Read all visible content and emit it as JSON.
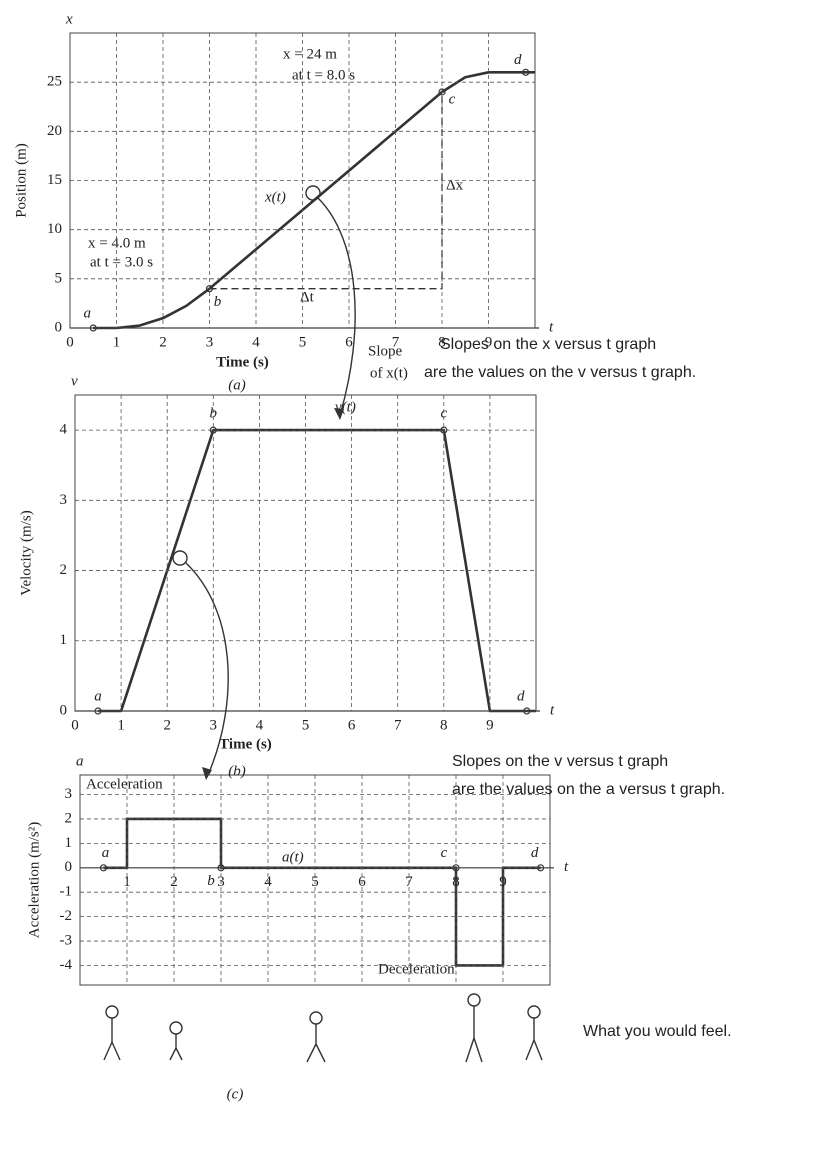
{
  "chart_data": [
    {
      "type": "line",
      "caption": "(a)",
      "x_label": "Time (s)",
      "y_label": "Position (m)",
      "x_symbol": "t",
      "y_symbol": "x",
      "xlim": [
        0,
        10
      ],
      "ylim": [
        0,
        30
      ],
      "xticks": [
        0,
        1,
        2,
        3,
        4,
        5,
        6,
        7,
        8,
        9
      ],
      "yticks": [
        0,
        5,
        10,
        15,
        20,
        25
      ],
      "grid": true,
      "x": [
        0.5,
        1,
        1.5,
        2,
        2.5,
        3,
        8,
        8.5,
        9,
        10
      ],
      "series": [
        {
          "name": "x(t)",
          "color": "#333333",
          "values": [
            0,
            0,
            0.25,
            1,
            2.25,
            4,
            24,
            25.5,
            26,
            26
          ]
        }
      ],
      "points": [
        {
          "label": "a",
          "x": 0.5,
          "y": 0
        },
        {
          "label": "b",
          "x": 3,
          "y": 4
        },
        {
          "label": "c",
          "x": 8,
          "y": 24
        },
        {
          "label": "d",
          "x": 9.8,
          "y": 26
        }
      ],
      "annotations": [
        "x = 24 m",
        "at t = 8.0 s",
        "x = 4.0 m",
        "at t = 3.0 s",
        "Δx",
        "Δt"
      ]
    },
    {
      "type": "line",
      "caption": "(b)",
      "x_label": "Time (s)",
      "y_label": "Velocity (m/s)",
      "x_symbol": "t",
      "y_symbol": "v",
      "xlim": [
        0,
        10
      ],
      "ylim": [
        0,
        4.5
      ],
      "xticks": [
        0,
        1,
        2,
        3,
        4,
        5,
        6,
        7,
        8,
        9
      ],
      "yticks": [
        0,
        1,
        2,
        3,
        4
      ],
      "grid": true,
      "x": [
        0.5,
        1,
        3,
        8,
        9,
        10
      ],
      "series": [
        {
          "name": "v(t)",
          "color": "#333333",
          "values": [
            0,
            0,
            4,
            4,
            0,
            0
          ]
        }
      ],
      "points": [
        {
          "label": "a",
          "x": 0.5,
          "y": 0
        },
        {
          "label": "b",
          "x": 3,
          "y": 4
        },
        {
          "label": "c",
          "x": 8,
          "y": 4
        },
        {
          "label": "d",
          "x": 9.8,
          "y": 0
        }
      ],
      "annotations": []
    },
    {
      "type": "line",
      "caption": "(c)",
      "y_label": "Acceleration (m/s²)",
      "x_symbol": "t",
      "y_symbol": "a",
      "xlim": [
        0,
        10
      ],
      "ylim": [
        -4.8,
        3.8
      ],
      "xticks": [
        1,
        2,
        3,
        4,
        5,
        6,
        7,
        8,
        9
      ],
      "yticks": [
        -4,
        -3,
        -2,
        -1,
        0,
        1,
        2,
        3
      ],
      "grid": true,
      "x": [
        0.5,
        1,
        1,
        3,
        3,
        8,
        8,
        9,
        9,
        9.8
      ],
      "series": [
        {
          "name": "a(t)",
          "color": "#333333",
          "values": [
            0,
            0,
            2,
            2,
            0,
            0,
            -4,
            -4,
            0,
            0
          ]
        }
      ],
      "points": [
        {
          "label": "a",
          "x": 0.5,
          "y": 0
        },
        {
          "label": "b",
          "x": 3,
          "y": 0
        },
        {
          "label": "c",
          "x": 8,
          "y": 0
        },
        {
          "label": "d",
          "x": 9.8,
          "y": 0
        }
      ],
      "annotations": [
        "Acceleration",
        "Deceleration"
      ]
    }
  ],
  "notes": [
    "Slopes on the x versus t graph",
    "are the values on the v versus t graph.",
    "Slope",
    "of x(t)",
    "Slopes on the v versus t graph",
    "are the values on the a versus t graph.",
    "What you would feel."
  ]
}
